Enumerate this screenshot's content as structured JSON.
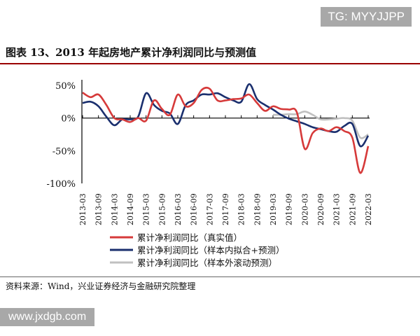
{
  "watermark_top": "TG: MYYJJPP",
  "title": "图表 13、2013 年起房地产累计净利润同比与预测值",
  "source": "资料来源：Wind，兴业证券经济与金融研究院整理",
  "watermark_bottom": "www.jxdgb.com",
  "chart_data": {
    "type": "line",
    "x": [
      "2013-03",
      "2013-06",
      "2013-09",
      "2013-12",
      "2014-03",
      "2014-06",
      "2014-09",
      "2014-12",
      "2015-03",
      "2015-06",
      "2015-09",
      "2015-12",
      "2016-03",
      "2016-06",
      "2016-09",
      "2016-12",
      "2017-03",
      "2017-06",
      "2017-09",
      "2017-12",
      "2018-03",
      "2018-06",
      "2018-09",
      "2018-12",
      "2019-03",
      "2019-06",
      "2019-09",
      "2019-12",
      "2020-03",
      "2020-06",
      "2020-09",
      "2020-12",
      "2021-03",
      "2021-06",
      "2021-09",
      "2021-12",
      "2022-03"
    ],
    "xticklabels": [
      "2013-03",
      "2013-09",
      "2014-03",
      "2014-09",
      "2015-03",
      "2015-09",
      "2016-03",
      "2016-09",
      "2017-03",
      "2017-09",
      "2018-03",
      "2018-09",
      "2019-03",
      "2019-09",
      "2020-03",
      "2020-09",
      "2021-03",
      "2021-09",
      "2022-03"
    ],
    "yticks": [
      "50%",
      "0%",
      "-50%",
      "-100%"
    ],
    "ylim": [
      -100,
      50
    ],
    "legend_position": "bottom",
    "grid": false,
    "series": [
      {
        "name": "累计净利润同比（真实值）",
        "color": "#d63a3a",
        "values": [
          39,
          32,
          36,
          20,
          0,
          -2,
          -6,
          0,
          -4,
          27,
          14,
          5,
          36,
          18,
          23,
          43,
          45,
          27,
          27,
          29,
          30,
          36,
          23,
          11,
          18,
          14,
          13,
          9,
          -47,
          -23,
          -16,
          -20,
          -14,
          -20,
          -30,
          -84,
          -43
        ]
      },
      {
        "name": "累计净利润同比（样本内拟合+预测）",
        "color": "#1a2f6e",
        "values": [
          23,
          25,
          18,
          2,
          -11,
          -2,
          -2,
          2,
          38,
          20,
          11,
          7,
          -9,
          20,
          27,
          36,
          36,
          38,
          32,
          27,
          25,
          52,
          29,
          20,
          13,
          5,
          -1,
          -5,
          -9,
          -14,
          -17,
          -20,
          -21,
          -12,
          -9,
          -43,
          -27
        ]
      },
      {
        "name": "累计净利润同比（样本外滚动预测）",
        "color": "#c0c0c0",
        "values": [
          null,
          null,
          null,
          null,
          null,
          null,
          null,
          null,
          null,
          null,
          null,
          null,
          null,
          null,
          null,
          null,
          null,
          null,
          null,
          null,
          null,
          null,
          null,
          null,
          5,
          5,
          6,
          6,
          10,
          5,
          -2,
          -2,
          -1,
          0,
          -4,
          -30,
          -25
        ]
      }
    ]
  }
}
